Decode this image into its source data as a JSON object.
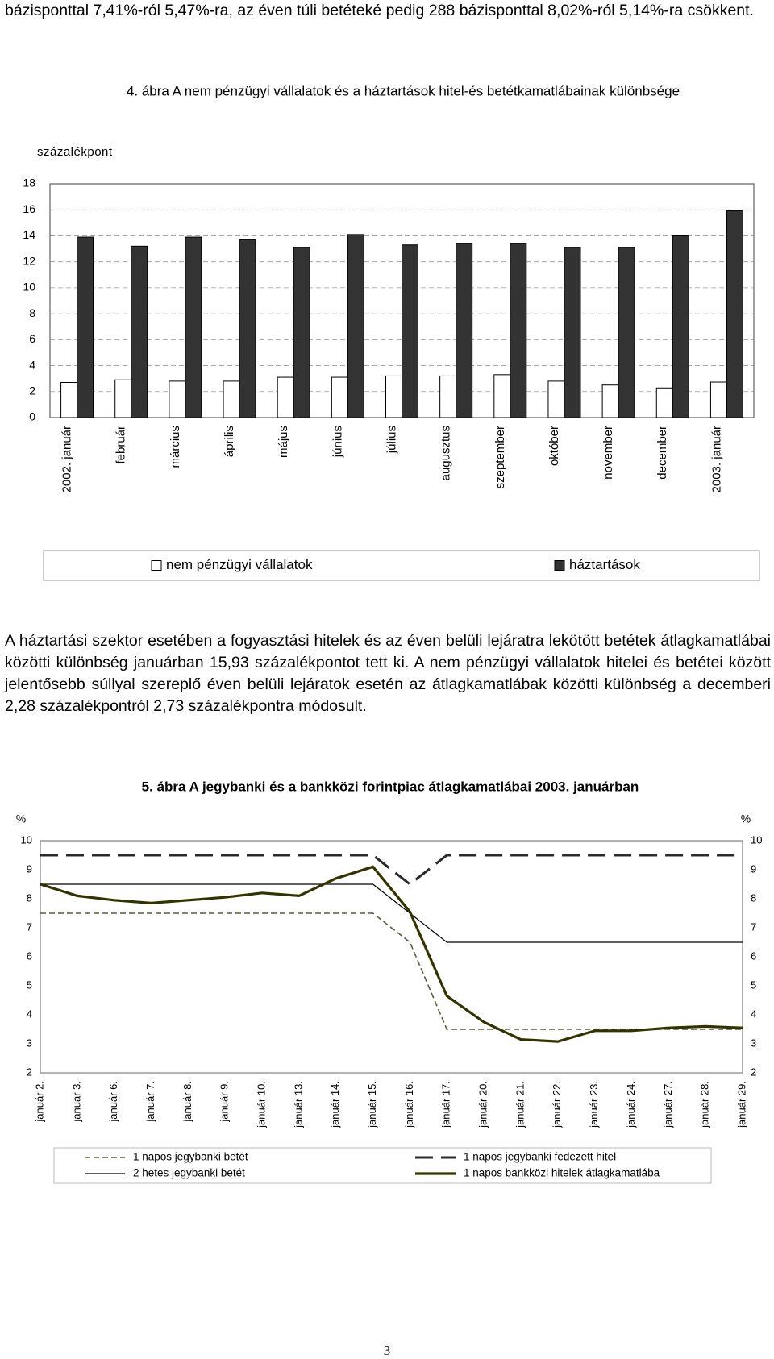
{
  "text": {
    "para1": "bázisponttal 7,41%-ról 5,47%-ra, az éven túli betéteké pedig  288 bázisponttal 8,02%-ról 5,14%-ra csökkent.",
    "para2": "A háztartási szektor esetében a fogyasztási hitelek és az éven belüli lejáratra lekötött betétek átlagkamatlábai közötti különbség januárban 15,93 százalékpontot tett ki. A nem pénzügyi vállalatok hitelei és betétei között jelentősebb súllyal szereplő éven belüli lejáratok esetén az átlagkamatlábak közötti különbség a decemberi 2,28 százalékpontról 2,73 százalékpontra módosult.",
    "page_number": "3"
  },
  "chart_data": [
    {
      "type": "bar",
      "title": "4. ábra A nem pénzügyi vállalatok és a háztartások hitel-és betétkamatlábainak különbsége",
      "y_label": "százalékpont",
      "categories": [
        "2002. január",
        "február",
        "március",
        "április",
        "május",
        "június",
        "július",
        "augusztus",
        "szeptember",
        "október",
        "november",
        "december",
        "2003. január"
      ],
      "series": [
        {
          "name": "nem pénzügyi vállalatok",
          "color": "#ffffff",
          "values": [
            2.7,
            2.9,
            2.8,
            2.8,
            3.1,
            3.1,
            3.2,
            3.2,
            3.3,
            2.8,
            2.5,
            2.28,
            2.73
          ]
        },
        {
          "name": "háztartások",
          "color": "#333333",
          "values": [
            13.9,
            13.2,
            13.9,
            13.7,
            13.1,
            14.1,
            13.3,
            13.4,
            13.4,
            13.1,
            13.1,
            14.0,
            15.93
          ]
        }
      ],
      "ylim": [
        0,
        18
      ],
      "yticks": [
        0,
        2,
        4,
        6,
        8,
        10,
        12,
        14,
        16,
        18
      ],
      "grid": true
    },
    {
      "type": "line",
      "title": "5. ábra A jegybanki és a bankközi forintpiac átlagkamatlábai 2003. januárban",
      "y_label": "%",
      "y2_label": "%",
      "categories": [
        "január 2.",
        "január 3.",
        "január 6.",
        "január 7.",
        "január 8.",
        "január 9.",
        "január 10.",
        "január 13.",
        "január 14.",
        "január 15.",
        "január 16.",
        "január 17.",
        "január 20.",
        "január 21.",
        "január 22.",
        "január 23.",
        "január 24.",
        "január 27.",
        "január 28.",
        "január 29."
      ],
      "series": [
        {
          "name": "1 napos jegybanki betét",
          "color": "#5a5a3c",
          "style": "dashed",
          "values": [
            7.5,
            7.5,
            7.5,
            7.5,
            7.5,
            7.5,
            7.5,
            7.5,
            7.5,
            7.5,
            6.5,
            3.5,
            3.5,
            3.5,
            3.5,
            3.5,
            3.5,
            3.5,
            3.5,
            3.5
          ]
        },
        {
          "name": "1 napos jegybanki fedezett hitel",
          "color": "#2b2b2b",
          "style": "long-dashed",
          "values": [
            9.5,
            9.5,
            9.5,
            9.5,
            9.5,
            9.5,
            9.5,
            9.5,
            9.5,
            9.5,
            8.5,
            9.5,
            9.5,
            9.5,
            9.5,
            9.5,
            9.5,
            9.5,
            9.5,
            9.5
          ]
        },
        {
          "name": "2 hetes jegybanki betét",
          "color": "#000000",
          "style": "solid",
          "values": [
            8.5,
            8.5,
            8.5,
            8.5,
            8.5,
            8.5,
            8.5,
            8.5,
            8.5,
            8.5,
            7.5,
            6.5,
            6.5,
            6.5,
            6.5,
            6.5,
            6.5,
            6.5,
            6.5,
            6.5
          ]
        },
        {
          "name": "1 napos bankközi hitelek átlagkamatlába",
          "color": "#333300",
          "style": "thick",
          "values": [
            8.5,
            8.1,
            7.95,
            7.85,
            7.95,
            8.05,
            8.2,
            8.1,
            8.7,
            9.1,
            7.55,
            4.65,
            3.75,
            3.15,
            3.08,
            3.45,
            3.45,
            3.55,
            3.6,
            3.55
          ]
        }
      ],
      "ylim": [
        2,
        10
      ],
      "yticks": [
        2,
        3,
        4,
        5,
        6,
        7,
        8,
        9,
        10
      ],
      "y2lim": [
        2,
        10
      ],
      "y2ticks": [
        2,
        3,
        4,
        5,
        6,
        7,
        8,
        9,
        10
      ],
      "grid": false
    }
  ]
}
